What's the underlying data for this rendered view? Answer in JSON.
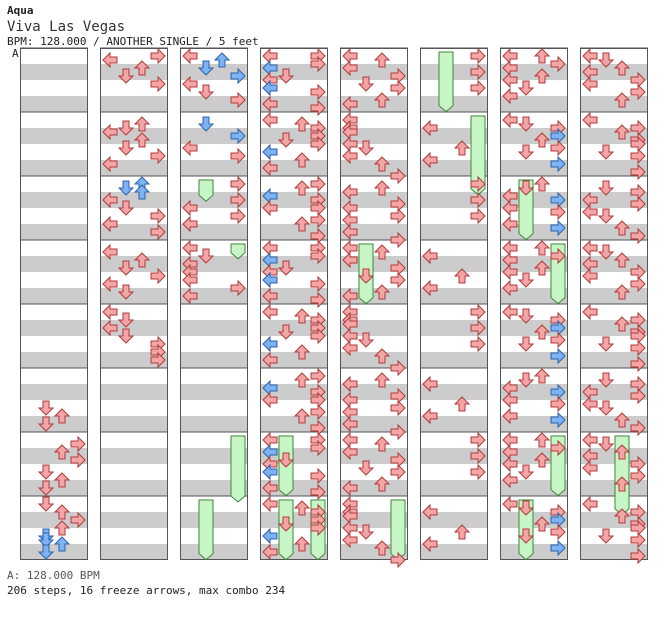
{
  "header": {
    "artist": "Aqua",
    "title": "Viva Las Vegas",
    "info": "BPM: 128.000 / ANOTHER SINGLE / 5 feet"
  },
  "section_marker": "A",
  "footer": {
    "bpm_line": "A: 128.000 BPM",
    "stats": "206 steps, 16 freeze arrows, max combo 234"
  },
  "colors": {
    "red_arrow": "#f4a6a6",
    "blue_arrow": "#7fb2f0",
    "pink_arrow": "#f0b8f0",
    "freeze": "#c8f5c8",
    "stripe": "#cccccc"
  },
  "columns": [
    {
      "notes": [
        {
          "b": 5,
          "r": 8,
          "l": "D",
          "c": "r"
        },
        {
          "b": 5,
          "r": 10,
          "l": "U",
          "c": "r"
        },
        {
          "b": 5,
          "r": 12,
          "l": "D",
          "c": "r"
        },
        {
          "b": 6,
          "r": 1,
          "l": "R",
          "c": "r"
        },
        {
          "b": 6,
          "r": 3,
          "l": "U",
          "c": "r"
        },
        {
          "b": 6,
          "r": 5,
          "l": "R",
          "c": "r"
        },
        {
          "b": 6,
          "r": 8,
          "l": "D",
          "c": "r"
        },
        {
          "b": 6,
          "r": 10,
          "l": "U",
          "c": "r"
        },
        {
          "b": 6,
          "r": 12,
          "l": "D",
          "c": "r"
        },
        {
          "b": 7,
          "r": 0,
          "l": "D",
          "c": "r"
        },
        {
          "b": 7,
          "r": 2,
          "l": "U",
          "c": "r"
        },
        {
          "b": 7,
          "r": 4,
          "l": "R",
          "c": "r"
        },
        {
          "b": 7,
          "r": 6,
          "l": "U",
          "c": "r"
        },
        {
          "b": 7,
          "r": 8,
          "l": "D",
          "c": "b"
        },
        {
          "b": 7,
          "r": 9,
          "l": "D",
          "c": "b"
        },
        {
          "b": 7,
          "r": 10,
          "l": "U",
          "c": "b"
        },
        {
          "b": 7,
          "r": 12,
          "l": "D",
          "c": "b"
        }
      ],
      "freezes": []
    },
    {
      "notes": [
        {
          "b": 0,
          "r": 1,
          "l": "L",
          "c": "r"
        },
        {
          "b": 0,
          "r": 0,
          "l": "R",
          "c": "r"
        },
        {
          "b": 0,
          "r": 3,
          "l": "U",
          "c": "r"
        },
        {
          "b": 0,
          "r": 5,
          "l": "D",
          "c": "r"
        },
        {
          "b": 0,
          "r": 7,
          "l": "R",
          "c": "r"
        },
        {
          "b": 1,
          "r": 1,
          "l": "U",
          "c": "r"
        },
        {
          "b": 1,
          "r": 2,
          "l": "D",
          "c": "r"
        },
        {
          "b": 1,
          "r": 3,
          "l": "L",
          "c": "r"
        },
        {
          "b": 1,
          "r": 5,
          "l": "U",
          "c": "r"
        },
        {
          "b": 1,
          "r": 7,
          "l": "D",
          "c": "r"
        },
        {
          "b": 1,
          "r": 9,
          "l": "R",
          "c": "r"
        },
        {
          "b": 1,
          "r": 11,
          "l": "L",
          "c": "r"
        },
        {
          "b": 2,
          "r": 1,
          "l": "D",
          "c": "b"
        },
        {
          "b": 2,
          "r": 0,
          "l": "U",
          "c": "b"
        },
        {
          "b": 2,
          "r": 2,
          "l": "U",
          "c": "b"
        },
        {
          "b": 2,
          "r": 4,
          "l": "L",
          "c": "r"
        },
        {
          "b": 2,
          "r": 6,
          "l": "D",
          "c": "r"
        },
        {
          "b": 2,
          "r": 8,
          "l": "R",
          "c": "r"
        },
        {
          "b": 2,
          "r": 10,
          "l": "L",
          "c": "r"
        },
        {
          "b": 2,
          "r": 12,
          "l": "R",
          "c": "r"
        },
        {
          "b": 3,
          "r": 1,
          "l": "L",
          "c": "r"
        },
        {
          "b": 3,
          "r": 3,
          "l": "U",
          "c": "r"
        },
        {
          "b": 3,
          "r": 5,
          "l": "D",
          "c": "r"
        },
        {
          "b": 3,
          "r": 7,
          "l": "R",
          "c": "r"
        },
        {
          "b": 3,
          "r": 9,
          "l": "L",
          "c": "r"
        },
        {
          "b": 3,
          "r": 11,
          "l": "D",
          "c": "r"
        },
        {
          "b": 4,
          "r": 0,
          "l": "L",
          "c": "r"
        },
        {
          "b": 4,
          "r": 2,
          "l": "D",
          "c": "r"
        },
        {
          "b": 4,
          "r": 4,
          "l": "L",
          "c": "r"
        },
        {
          "b": 4,
          "r": 6,
          "l": "D",
          "c": "r"
        },
        {
          "b": 4,
          "r": 8,
          "l": "R",
          "c": "r"
        },
        {
          "b": 4,
          "r": 10,
          "l": "R",
          "c": "r"
        },
        {
          "b": 4,
          "r": 12,
          "l": "R",
          "c": "r"
        }
      ],
      "freezes": []
    },
    {
      "notes": [
        {
          "b": 0,
          "r": 0,
          "l": "L",
          "c": "r"
        },
        {
          "b": 0,
          "r": 1,
          "l": "U",
          "c": "b"
        },
        {
          "b": 0,
          "r": 3,
          "l": "D",
          "c": "b"
        },
        {
          "b": 0,
          "r": 5,
          "l": "R",
          "c": "b"
        },
        {
          "b": 0,
          "r": 7,
          "l": "L",
          "c": "r"
        },
        {
          "b": 0,
          "r": 9,
          "l": "D",
          "c": "r"
        },
        {
          "b": 0,
          "r": 11,
          "l": "R",
          "c": "r"
        },
        {
          "b": 1,
          "r": 1,
          "l": "D",
          "c": "b"
        },
        {
          "b": 1,
          "r": 4,
          "l": "R",
          "c": "b"
        },
        {
          "b": 1,
          "r": 7,
          "l": "L",
          "c": "r"
        },
        {
          "b": 1,
          "r": 9,
          "l": "R",
          "c": "r"
        },
        {
          "b": 2,
          "r": 0,
          "l": "R",
          "c": "r"
        },
        {
          "b": 2,
          "r": 2,
          "l": "D",
          "c": "r"
        },
        {
          "b": 2,
          "r": 4,
          "l": "R",
          "c": "r"
        },
        {
          "b": 2,
          "r": 6,
          "l": "L",
          "c": "r"
        },
        {
          "b": 2,
          "r": 8,
          "l": "R",
          "c": "r"
        },
        {
          "b": 2,
          "r": 10,
          "l": "L",
          "c": "r"
        },
        {
          "b": 3,
          "r": 0,
          "l": "L",
          "c": "r"
        },
        {
          "b": 3,
          "r": 2,
          "l": "D",
          "c": "r"
        },
        {
          "b": 3,
          "r": 4,
          "l": "L",
          "c": "r"
        },
        {
          "b": 3,
          "r": 6,
          "l": "L",
          "c": "r"
        },
        {
          "b": 3,
          "r": 8,
          "l": "L",
          "c": "r"
        },
        {
          "b": 3,
          "r": 10,
          "l": "R",
          "c": "r"
        },
        {
          "b": 3,
          "r": 12,
          "l": "L",
          "c": "r"
        }
      ],
      "freezes": []
    }
  ]
}
